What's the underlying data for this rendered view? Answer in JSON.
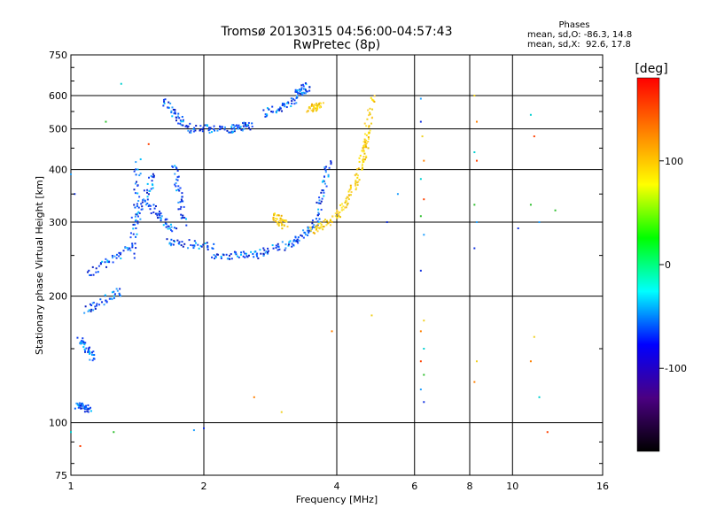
{
  "chart_data": {
    "type": "scatter",
    "title": "Tromsø 20130315 04:56:00-04:57:43",
    "subtitle": "RwPretec (8p)",
    "xlabel": "Frequency [MHz]",
    "ylabel": "Stationary phase Virtual Height [km]",
    "x_scale": "log",
    "y_scale": "log",
    "xlim": [
      1,
      16
    ],
    "ylim": [
      75,
      750
    ],
    "x_ticks": [
      1,
      2,
      4,
      6,
      8,
      10,
      16
    ],
    "y_ticks": [
      75,
      100,
      200,
      300,
      400,
      500,
      600,
      750
    ],
    "phases": {
      "heading": "Phases",
      "line_o": "mean, sd,O: -86.3, 14.8",
      "line_x": "mean, sd,X:  92.6, 17.8"
    },
    "colorbar": {
      "label": "[deg]",
      "min": -180,
      "max": 180,
      "ticks": [
        100,
        0,
        -100
      ],
      "colormap": [
        "#000000",
        "#4b0082",
        "#0000ff",
        "#00ffff",
        "#00ff00",
        "#ffff00",
        "#ff8000",
        "#ff0000"
      ]
    },
    "series": [
      {
        "description": "O-mode traces",
        "phase_deg": -86,
        "color": "#1030e0",
        "segments": [
          {
            "x": [
              1.03,
              1.1
            ],
            "y": [
              110,
              108
            ]
          },
          {
            "x": [
              1.05,
              1.12
            ],
            "y": [
              158,
              142
            ]
          },
          {
            "x": [
              1.08,
              1.3
            ],
            "y": [
              185,
              205
            ]
          },
          {
            "x": [
              1.1,
              1.38
            ],
            "y": [
              225,
              265
            ]
          },
          {
            "x": [
              1.38,
              1.42
            ],
            "y": [
              250,
              420
            ]
          },
          {
            "x": [
              1.4,
              1.55
            ],
            "y": [
              300,
              390
            ]
          },
          {
            "x": [
              1.5,
              1.72
            ],
            "y": [
              330,
              285
            ]
          },
          {
            "x": [
              1.65,
              2.1
            ],
            "y": [
              270,
              262
            ]
          },
          {
            "x": [
              1.72,
              1.8
            ],
            "y": [
              410,
              300
            ]
          },
          {
            "x": [
              2.1,
              2.6
            ],
            "y": [
              250,
              250
            ]
          },
          {
            "x": [
              2.6,
              3.2
            ],
            "y": [
              250,
              268
            ]
          },
          {
            "x": [
              3.2,
              3.6
            ],
            "y": [
              268,
              300
            ]
          },
          {
            "x": [
              3.6,
              3.85
            ],
            "y": [
              300,
              420
            ]
          },
          {
            "x": [
              1.62,
              1.85
            ],
            "y": [
              580,
              500
            ]
          },
          {
            "x": [
              1.85,
              2.3
            ],
            "y": [
              500,
              500
            ]
          },
          {
            "x": [
              2.3,
              2.55
            ],
            "y": [
              500,
              510
            ]
          },
          {
            "x": [
              2.75,
              3.2
            ],
            "y": [
              545,
              575
            ]
          },
          {
            "x": [
              3.2,
              3.45
            ],
            "y": [
              600,
              630
            ]
          }
        ]
      },
      {
        "description": "X-mode traces",
        "phase_deg": 95,
        "color": "#f0d020",
        "segments": [
          {
            "x": [
              2.9,
              3.05
            ],
            "y": [
              310,
              295
            ]
          },
          {
            "x": [
              3.5,
              4.0
            ],
            "y": [
              285,
              310
            ]
          },
          {
            "x": [
              4.0,
              4.4
            ],
            "y": [
              310,
              370
            ]
          },
          {
            "x": [
              4.4,
              4.7
            ],
            "y": [
              370,
              480
            ]
          },
          {
            "x": [
              4.6,
              4.8
            ],
            "y": [
              420,
              600
            ]
          },
          {
            "x": [
              3.45,
              3.7
            ],
            "y": [
              560,
              565
            ]
          }
        ]
      },
      {
        "description": "Scattered echoes",
        "color": "#20a0ff",
        "points": [
          [
            6.2,
            590
          ],
          [
            6.2,
            520
          ],
          [
            6.25,
            480
          ],
          [
            6.3,
            420
          ],
          [
            6.2,
            380
          ],
          [
            6.3,
            340
          ],
          [
            6.2,
            310
          ],
          [
            6.3,
            280
          ],
          [
            6.2,
            230
          ],
          [
            6.3,
            175
          ],
          [
            6.2,
            165
          ],
          [
            6.3,
            150
          ],
          [
            6.2,
            140
          ],
          [
            6.3,
            130
          ],
          [
            6.2,
            120
          ],
          [
            6.3,
            112
          ],
          [
            8.2,
            600
          ],
          [
            8.3,
            520
          ],
          [
            8.2,
            440
          ],
          [
            8.3,
            420
          ],
          [
            8.2,
            330
          ],
          [
            8.3,
            300
          ],
          [
            8.2,
            260
          ],
          [
            8.3,
            140
          ],
          [
            8.2,
            125
          ],
          [
            11.0,
            540
          ],
          [
            11.2,
            480
          ],
          [
            11.0,
            330
          ],
          [
            11.5,
            300
          ],
          [
            10.3,
            290
          ],
          [
            11.2,
            160
          ],
          [
            11.0,
            140
          ],
          [
            11.5,
            115
          ],
          [
            12.0,
            95
          ],
          [
            12.5,
            320
          ],
          [
            5.5,
            350
          ],
          [
            5.2,
            300
          ],
          [
            4.8,
            180
          ],
          [
            3.9,
            165
          ],
          [
            1.0,
            95
          ],
          [
            1.05,
            88
          ],
          [
            1.25,
            95
          ],
          [
            1.9,
            96
          ],
          [
            2.0,
            97
          ],
          [
            3.0,
            106
          ],
          [
            2.6,
            115
          ],
          [
            1.3,
            640
          ],
          [
            1.5,
            460
          ],
          [
            1.2,
            520
          ],
          [
            1.0,
            390
          ],
          [
            1.02,
            350
          ]
        ]
      }
    ]
  }
}
